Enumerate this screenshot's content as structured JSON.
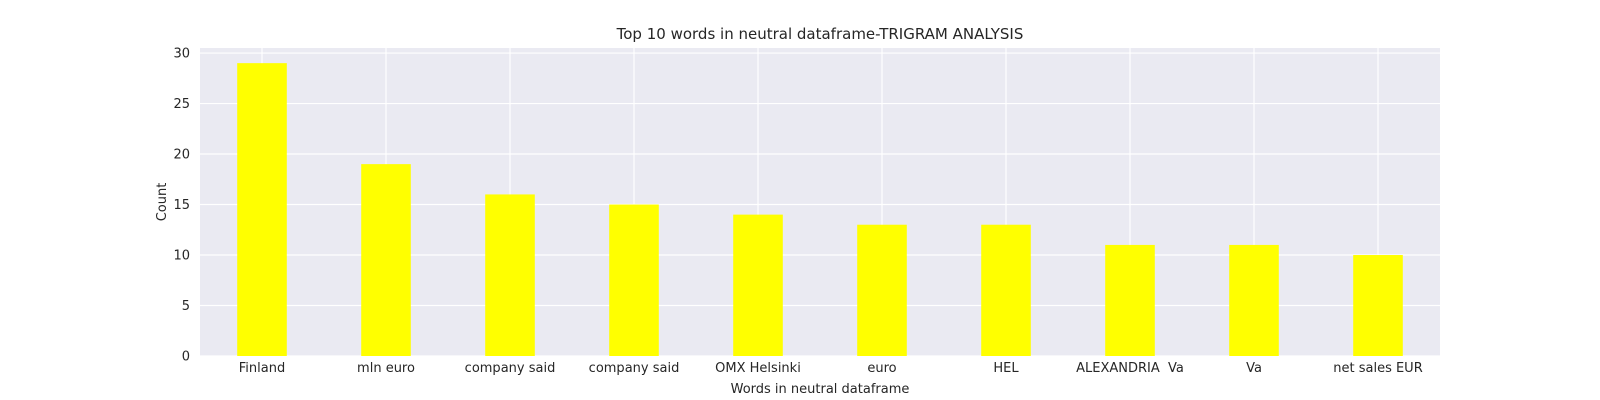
{
  "chart_data": {
    "type": "bar",
    "title": "Top 10 words in neutral dataframe-TRIGRAM ANALYSIS",
    "xlabel": "Words in neutral dataframe",
    "ylabel": "Count",
    "categories": [
      "Finland",
      "mln euro",
      "company said",
      "company said",
      "OMX Helsinki",
      "euro",
      "HEL",
      "ALEXANDRIA  Va",
      "Va",
      "net sales EUR"
    ],
    "values": [
      29,
      19,
      16,
      15,
      14,
      13,
      13,
      11,
      11,
      10
    ],
    "ylim": [
      0,
      30.5
    ],
    "yticks": [
      0,
      5,
      10,
      15,
      20,
      25,
      30
    ],
    "grid": true,
    "bar_color": "#ffff00",
    "background_color": "#eaeaf2",
    "grid_color": "#ffffff"
  }
}
